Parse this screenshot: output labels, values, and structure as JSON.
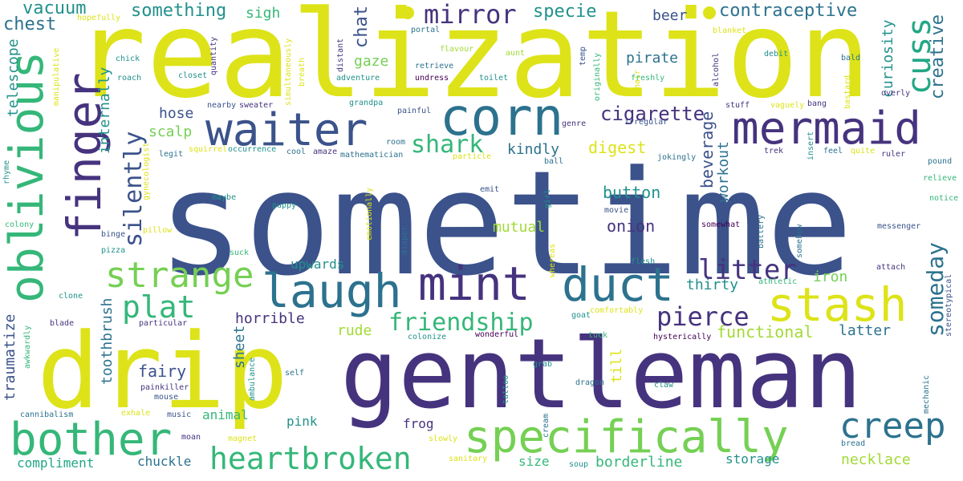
{
  "palette": {
    "yellow": "#dde318",
    "green_yellow": "#a2da37",
    "light_green": "#75d054",
    "green": "#35b779",
    "teal_green": "#22a785",
    "teal": "#21918c",
    "blue_teal": "#2c728e",
    "steel_blue": "#3b528b",
    "indigo": "#46337e",
    "deep_purple": "#440154"
  },
  "words": [
    {
      "text": "sometime",
      "color": "#3b528b"
    },
    {
      "text": "realization",
      "color": "#dde318"
    },
    {
      "text": "gentleman",
      "color": "#46337e"
    },
    {
      "text": "drip",
      "color": "#dde318"
    },
    {
      "text": "oblivious",
      "color": "#35b779"
    },
    {
      "text": "finger",
      "color": "#46337e"
    },
    {
      "text": "waiter",
      "color": "#3b528b"
    },
    {
      "text": "corn",
      "color": "#2c728e"
    },
    {
      "text": "mermaid",
      "color": "#46337e"
    },
    {
      "text": "laugh",
      "color": "#2c728e"
    },
    {
      "text": "mint",
      "color": "#46337e"
    },
    {
      "text": "duct",
      "color": "#2c728e"
    },
    {
      "text": "stash",
      "color": "#dde318"
    },
    {
      "text": "bother",
      "color": "#35b779"
    },
    {
      "text": "specifically",
      "color": "#75d054"
    },
    {
      "text": "creep",
      "color": "#2c728e"
    },
    {
      "text": "heartbroken",
      "color": "#35b779"
    },
    {
      "text": "strange",
      "color": "#75d054"
    },
    {
      "text": "plat",
      "color": "#35b779"
    },
    {
      "text": "cuss",
      "color": "#22a785"
    },
    {
      "text": "mirror",
      "color": "#46337e"
    },
    {
      "text": "shark",
      "color": "#35b779"
    },
    {
      "text": "silently",
      "color": "#3b528b"
    },
    {
      "text": "litter",
      "color": "#46337e"
    },
    {
      "text": "pierce",
      "color": "#46337e"
    },
    {
      "text": "friendship",
      "color": "#35b779"
    },
    {
      "text": "someday",
      "color": "#2c728e"
    },
    {
      "text": "cigarette",
      "color": "#46337e"
    },
    {
      "text": "creative",
      "color": "#2c728e"
    },
    {
      "text": "vacuum",
      "color": "#21918c"
    },
    {
      "text": "chest",
      "color": "#2c728e"
    },
    {
      "text": "something",
      "color": "#21918c"
    },
    {
      "text": "sigh",
      "color": "#35b779"
    },
    {
      "text": "specie",
      "color": "#21918c"
    },
    {
      "text": "beer",
      "color": "#3b528b"
    },
    {
      "text": "contraceptive",
      "color": "#2c728e"
    },
    {
      "text": "curiosity",
      "color": "#21918c"
    },
    {
      "text": "chat",
      "color": "#3b528b"
    },
    {
      "text": "gaze",
      "color": "#75d054"
    },
    {
      "text": "pirate",
      "color": "#2c728e"
    },
    {
      "text": "telescope",
      "color": "#21918c"
    },
    {
      "text": "internally",
      "color": "#21918c"
    },
    {
      "text": "hose",
      "color": "#3b528b"
    },
    {
      "text": "scalp",
      "color": "#75d054"
    },
    {
      "text": "digest",
      "color": "#dde318"
    },
    {
      "text": "kindly",
      "color": "#2c728e"
    },
    {
      "text": "beverage",
      "color": "#3b528b"
    },
    {
      "text": "workout",
      "color": "#2c728e"
    },
    {
      "text": "button",
      "color": "#21918c"
    },
    {
      "text": "onion",
      "color": "#46337e"
    },
    {
      "text": "mutual",
      "color": "#a2da37"
    },
    {
      "text": "thirty",
      "color": "#21918c"
    },
    {
      "text": "iron",
      "color": "#75d054"
    },
    {
      "text": "traumatize",
      "color": "#3b528b"
    },
    {
      "text": "toothbrush",
      "color": "#2c728e"
    },
    {
      "text": "horrible",
      "color": "#46337e"
    },
    {
      "text": "upwards",
      "color": "#21918c"
    },
    {
      "text": "rude",
      "color": "#a2da37"
    },
    {
      "text": "functional",
      "color": "#a2da37"
    },
    {
      "text": "latter",
      "color": "#2c728e"
    },
    {
      "text": "fairy",
      "color": "#3b528b"
    },
    {
      "text": "sheet",
      "color": "#2c728e"
    },
    {
      "text": "till",
      "color": "#dde318"
    },
    {
      "text": "animal",
      "color": "#35b779"
    },
    {
      "text": "pink",
      "color": "#21918c"
    },
    {
      "text": "frog",
      "color": "#46337e"
    },
    {
      "text": "chuckle",
      "color": "#2c728e"
    },
    {
      "text": "compliment",
      "color": "#22a785"
    },
    {
      "text": "size",
      "color": "#35b779"
    },
    {
      "text": "borderline",
      "color": "#35b779"
    },
    {
      "text": "storage",
      "color": "#21918c"
    },
    {
      "text": "necklace",
      "color": "#a2da37"
    },
    {
      "text": "hopefully",
      "color": "#dde318"
    },
    {
      "text": "quantity",
      "color": "#46337e"
    },
    {
      "text": "distant",
      "color": "#46337e"
    },
    {
      "text": "portal",
      "color": "#2c728e"
    },
    {
      "text": "flavour",
      "color": "#a2da37"
    },
    {
      "text": "temp",
      "color": "#3b528b"
    },
    {
      "text": "hair",
      "color": "#dde318"
    },
    {
      "text": "blanket",
      "color": "#dde318"
    },
    {
      "text": "debit",
      "color": "#21918c"
    },
    {
      "text": "bald",
      "color": "#2c728e"
    },
    {
      "text": "manipulative",
      "color": "#dde318"
    },
    {
      "text": "chick",
      "color": "#21918c"
    },
    {
      "text": "roach",
      "color": "#21918c"
    },
    {
      "text": "closet",
      "color": "#21918c"
    },
    {
      "text": "simultaneously",
      "color": "#dde318"
    },
    {
      "text": "breath",
      "color": "#dde318"
    },
    {
      "text": "adventure",
      "color": "#21918c"
    },
    {
      "text": "retrieve",
      "color": "#2c728e"
    },
    {
      "text": "undress",
      "color": "#440154"
    },
    {
      "text": "aunt",
      "color": "#a2da37"
    },
    {
      "text": "toilet",
      "color": "#21918c"
    },
    {
      "text": "originally",
      "color": "#35b779"
    },
    {
      "text": "freshly",
      "color": "#35b779"
    },
    {
      "text": "alcohol",
      "color": "#46337e"
    },
    {
      "text": "bastard",
      "color": "#dde318"
    },
    {
      "text": "overly",
      "color": "#46337e"
    },
    {
      "text": "grandpa",
      "color": "#21918c"
    },
    {
      "text": "painful",
      "color": "#3b528b"
    },
    {
      "text": "genre",
      "color": "#46337e"
    },
    {
      "text": "irregular",
      "color": "#3b528b"
    },
    {
      "text": "stuff",
      "color": "#46337e"
    },
    {
      "text": "vaguely",
      "color": "#dde318"
    },
    {
      "text": "bang",
      "color": "#46337e"
    },
    {
      "text": "nearby",
      "color": "#3b528b"
    },
    {
      "text": "sweater",
      "color": "#46337e"
    },
    {
      "text": "gynecologist",
      "color": "#dde318"
    },
    {
      "text": "legit",
      "color": "#2c728e"
    },
    {
      "text": "squirrel",
      "color": "#dde318"
    },
    {
      "text": "occurrence",
      "color": "#21918c"
    },
    {
      "text": "cool",
      "color": "#2c728e"
    },
    {
      "text": "amaze",
      "color": "#46337e"
    },
    {
      "text": "mathematician",
      "color": "#2c728e"
    },
    {
      "text": "room",
      "color": "#2c728e"
    },
    {
      "text": "particle",
      "color": "#dde318"
    },
    {
      "text": "ball",
      "color": "#2c728e"
    },
    {
      "text": "jokingly",
      "color": "#2c728e"
    },
    {
      "text": "trek",
      "color": "#46337e"
    },
    {
      "text": "insert",
      "color": "#21918c"
    },
    {
      "text": "feel",
      "color": "#2c728e"
    },
    {
      "text": "quite",
      "color": "#dde318"
    },
    {
      "text": "ruler",
      "color": "#46337e"
    },
    {
      "text": "pound",
      "color": "#2c728e"
    },
    {
      "text": "rhyme",
      "color": "#21918c"
    },
    {
      "text": "relieve",
      "color": "#35b779"
    },
    {
      "text": "notice",
      "color": "#35b779"
    },
    {
      "text": "maybe",
      "color": "#21918c"
    },
    {
      "text": "puppy",
      "color": "#21918c"
    },
    {
      "text": "emotionally",
      "color": "#dde318"
    },
    {
      "text": "emit",
      "color": "#3b528b"
    },
    {
      "text": "girl",
      "color": "#21918c"
    },
    {
      "text": "movie",
      "color": "#3b528b"
    },
    {
      "text": "somewhat",
      "color": "#440154"
    },
    {
      "text": "battery",
      "color": "#2c728e"
    },
    {
      "text": "somehow",
      "color": "#2c728e"
    },
    {
      "text": "messenger",
      "color": "#3b528b"
    },
    {
      "text": "colony",
      "color": "#35b779"
    },
    {
      "text": "binge",
      "color": "#3b528b"
    },
    {
      "text": "pillow",
      "color": "#dde318"
    },
    {
      "text": "pizza",
      "color": "#21918c"
    },
    {
      "text": "suck",
      "color": "#35b779"
    },
    {
      "text": "diaper",
      "color": "#2c728e"
    },
    {
      "text": "whereas",
      "color": "#dde318"
    },
    {
      "text": "flesh",
      "color": "#21918c"
    },
    {
      "text": "athletic",
      "color": "#35b779"
    },
    {
      "text": "attach",
      "color": "#46337e"
    },
    {
      "text": "stereotypical",
      "color": "#3b528b"
    },
    {
      "text": "clone",
      "color": "#21918c"
    },
    {
      "text": "blade",
      "color": "#46337e"
    },
    {
      "text": "particular",
      "color": "#46337e"
    },
    {
      "text": "awkwardly",
      "color": "#35b779"
    },
    {
      "text": "colonize",
      "color": "#21918c"
    },
    {
      "text": "wonderful",
      "color": "#440154"
    },
    {
      "text": "goat",
      "color": "#21918c"
    },
    {
      "text": "comfortably",
      "color": "#dde318"
    },
    {
      "text": "tuck",
      "color": "#35b779"
    },
    {
      "text": "hysterically",
      "color": "#440154"
    },
    {
      "text": "ambulance",
      "color": "#21918c"
    },
    {
      "text": "self",
      "color": "#2c728e"
    },
    {
      "text": "painkiller",
      "color": "#46337e"
    },
    {
      "text": "mouse",
      "color": "#3b528b"
    },
    {
      "text": "grab",
      "color": "#21918c"
    },
    {
      "text": "dragon",
      "color": "#2c728e"
    },
    {
      "text": "tattoo",
      "color": "#21918c"
    },
    {
      "text": "claw",
      "color": "#21918c"
    },
    {
      "text": "mechanic",
      "color": "#2c728e"
    },
    {
      "text": "bread",
      "color": "#2c728e"
    },
    {
      "text": "cannibalism",
      "color": "#2c728e"
    },
    {
      "text": "exhale",
      "color": "#dde318"
    },
    {
      "text": "music",
      "color": "#3b528b"
    },
    {
      "text": "cream",
      "color": "#2c728e"
    },
    {
      "text": "moan",
      "color": "#46337e"
    },
    {
      "text": "magnet",
      "color": "#dde318"
    },
    {
      "text": "slowly",
      "color": "#dde318"
    },
    {
      "text": "sanitary",
      "color": "#dde318"
    },
    {
      "text": "soup",
      "color": "#21918c"
    }
  ]
}
